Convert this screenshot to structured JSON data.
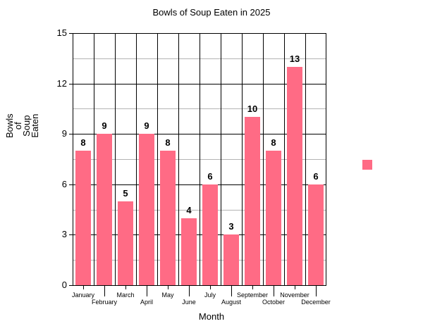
{
  "chart_data": {
    "type": "bar",
    "title": "Bowls of Soup Eaten in 2025",
    "xlabel": "Month",
    "ylabel": "Bowls of Soup Eaten",
    "ylabel_lines": [
      "Bowls",
      "of",
      "Soup",
      "Eaten"
    ],
    "categories": [
      "January",
      "February",
      "March",
      "April",
      "May",
      "June",
      "July",
      "August",
      "September",
      "October",
      "November",
      "December"
    ],
    "values": [
      8,
      9,
      5,
      9,
      8,
      4,
      6,
      3,
      10,
      8,
      13,
      6
    ],
    "ylim": [
      0,
      15
    ],
    "yticks": [
      0,
      3,
      6,
      9,
      12,
      15
    ],
    "grid": true,
    "legend": {
      "position": "right",
      "entries": [
        ""
      ]
    },
    "bar_color": "#ff6b85",
    "data_labels": true
  }
}
